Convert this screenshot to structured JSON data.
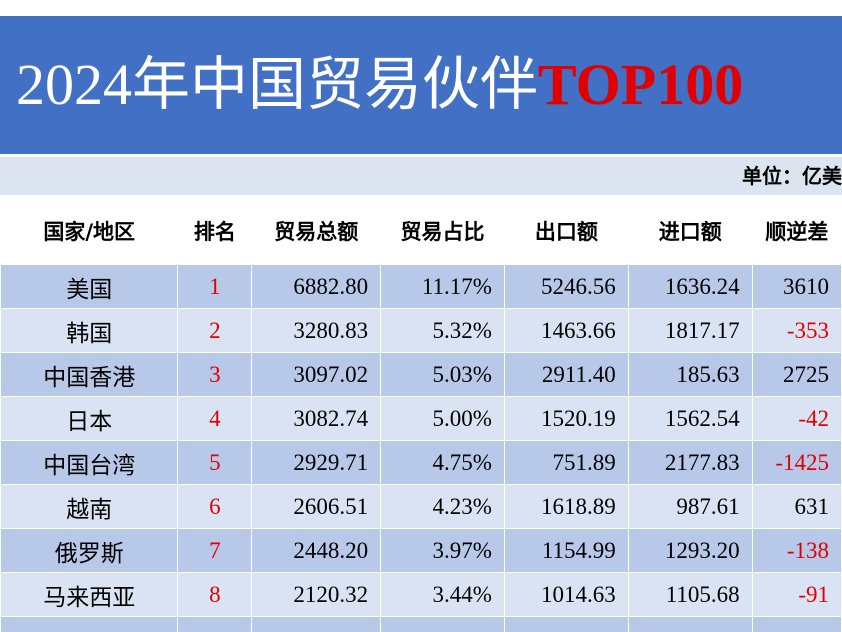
{
  "header": {
    "title": "2024年中国贸易伙伴",
    "title_highlight": "TOP100",
    "unit": "单位：亿美"
  },
  "table": {
    "columns": [
      "国家/地区",
      "排名",
      "贸易总额",
      "贸易占比",
      "出口额",
      "进口额",
      "顺逆差"
    ],
    "rows": [
      [
        "美国",
        "1",
        "6882.80",
        "11.17%",
        "5246.56",
        "1636.24",
        "3610"
      ],
      [
        "韩国",
        "2",
        "3280.83",
        "5.32%",
        "1463.66",
        "1817.17",
        "-353"
      ],
      [
        "中国香港",
        "3",
        "3097.02",
        "5.03%",
        "2911.40",
        "185.63",
        "2725"
      ],
      [
        "日本",
        "4",
        "3082.74",
        "5.00%",
        "1520.19",
        "1562.54",
        "-42"
      ],
      [
        "中国台湾",
        "5",
        "2929.71",
        "4.75%",
        "751.89",
        "2177.83",
        "-1425"
      ],
      [
        "越南",
        "6",
        "2606.51",
        "4.23%",
        "1618.89",
        "987.61",
        "631"
      ],
      [
        "俄罗斯",
        "7",
        "2448.20",
        "3.97%",
        "1154.99",
        "1293.20",
        "-138"
      ],
      [
        "马来西亚",
        "8",
        "2120.32",
        "3.44%",
        "1014.63",
        "1105.68",
        "-91"
      ]
    ]
  }
}
